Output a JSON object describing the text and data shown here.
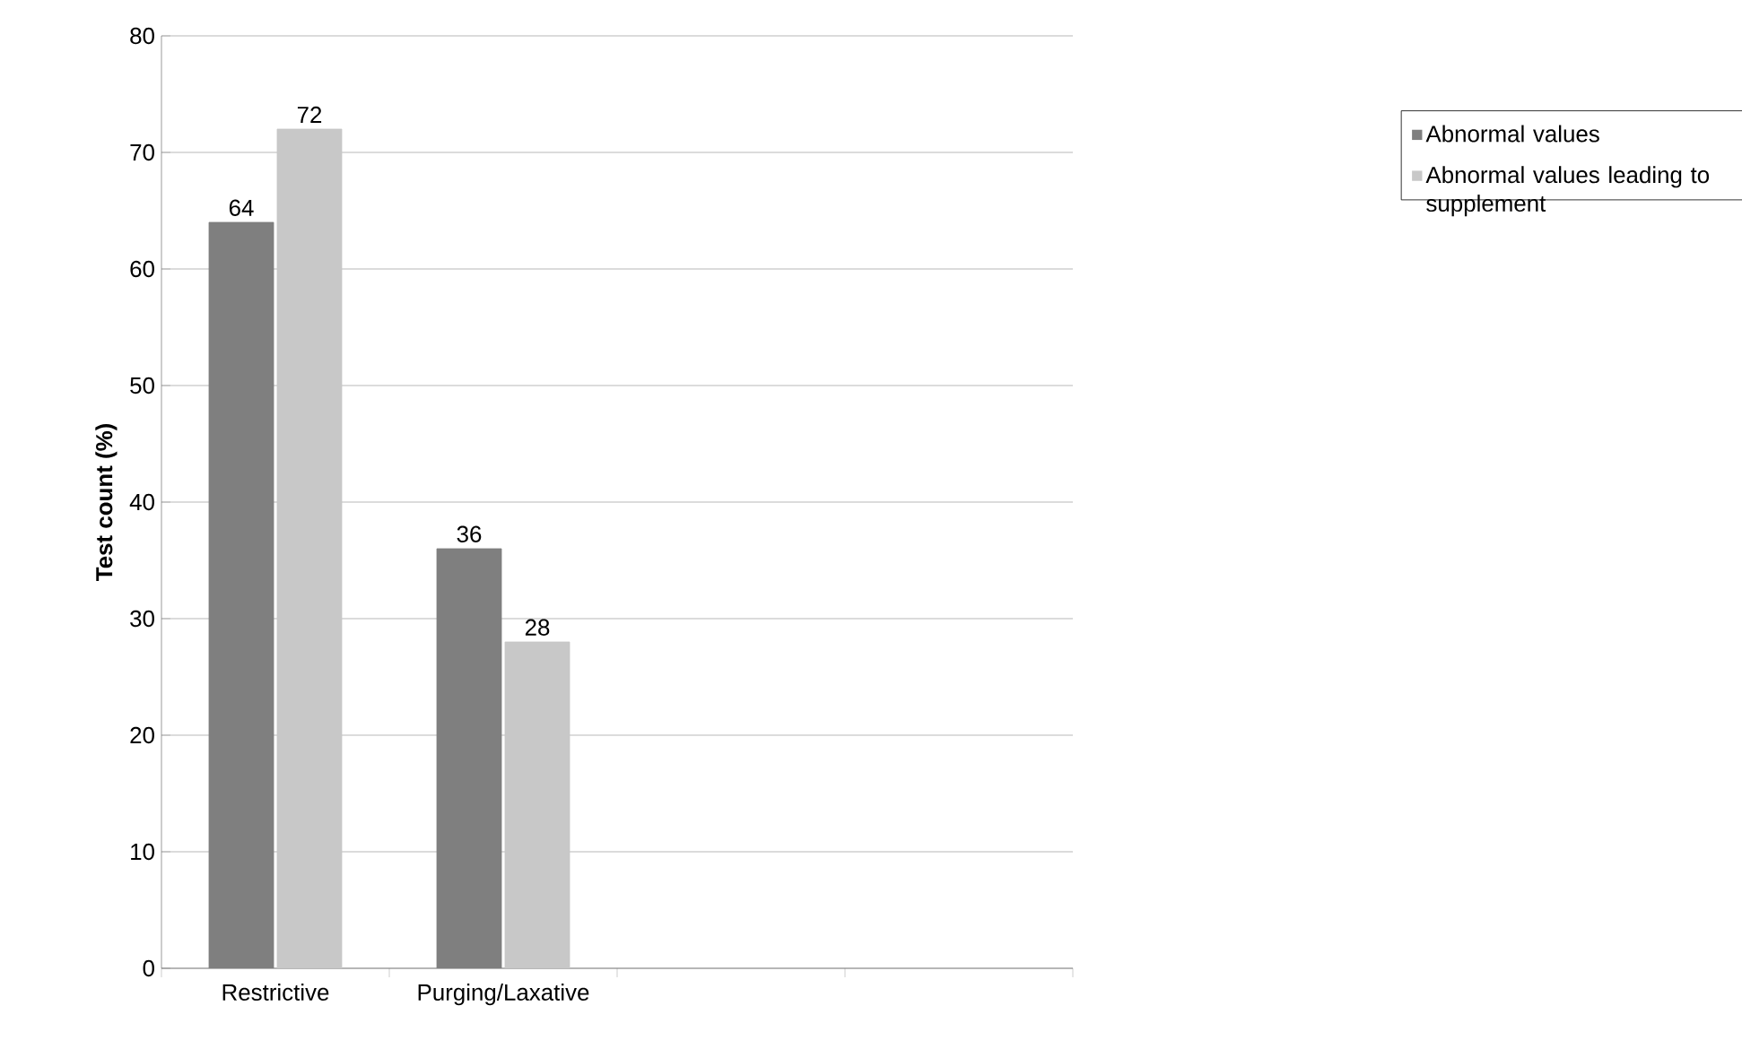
{
  "chart_data": {
    "type": "bar",
    "ylabel": "Test count (%)",
    "categories": [
      "Restrictive",
      "Purging/Laxative",
      null,
      null
    ],
    "series": [
      {
        "name": "Abnormal values",
        "color": "#7f7f7f",
        "values": [
          64,
          36,
          null,
          null
        ]
      },
      {
        "name": "Abnormal values leading to supplement",
        "color": "#c8c8c8",
        "values": [
          72,
          28,
          null,
          null
        ]
      }
    ],
    "ylim": [
      0,
      80
    ],
    "yticks": [
      0,
      10,
      20,
      30,
      40,
      50,
      60,
      70,
      80
    ],
    "grid": "y",
    "legend": "right",
    "data_labels": true
  }
}
